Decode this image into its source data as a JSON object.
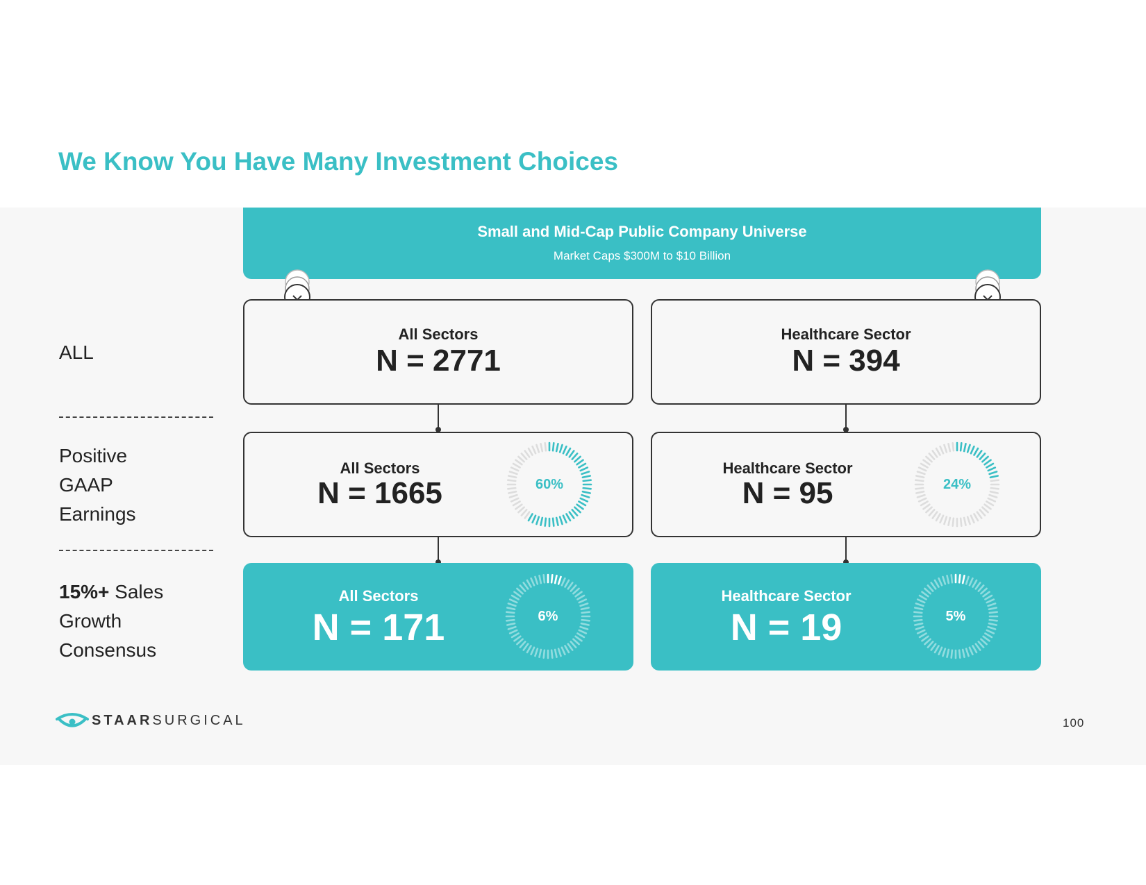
{
  "title": "We Know You Have Many Investment Choices",
  "banner": {
    "title": "Small and Mid-Cap Public Company Universe",
    "subtitle": "Market Caps $300M to $10 Billion"
  },
  "rows": {
    "all": {
      "label": "ALL"
    },
    "earnings": {
      "line1": "Positive",
      "line2": "GAAP",
      "line3": "Earnings"
    },
    "growth": {
      "bold": "15%+",
      "rest": " Sales",
      "line2": "Growth",
      "line3": "Consensus"
    }
  },
  "boxes": {
    "all_all": {
      "sector": "All Sectors",
      "n": "N = 2771"
    },
    "all_hc": {
      "sector": "Healthcare Sector",
      "n": "N = 394"
    },
    "earn_all": {
      "sector": "All Sectors",
      "n": "N = 1665",
      "pct": "60%",
      "fraction": 0.6
    },
    "earn_hc": {
      "sector": "Healthcare Sector",
      "n": "N = 95",
      "pct": "24%",
      "fraction": 0.24
    },
    "grow_all": {
      "sector": "All Sectors",
      "n": "N = 171",
      "pct": "6%",
      "fraction": 0.06
    },
    "grow_hc": {
      "sector": "Healthcare Sector",
      "n": "N = 19",
      "pct": "5%",
      "fraction": 0.05
    }
  },
  "logo": {
    "bold": "STAAR",
    "rest": "SURGICAL"
  },
  "page_number": "100",
  "colors": {
    "accent": "#3ABFC5",
    "panel": "#F7F7F7",
    "dark": "#222222",
    "gauge_track_light": "#DDDDDD"
  },
  "icons": {
    "connector": "chevron-down-icon",
    "logo": "eye-logo-icon"
  }
}
